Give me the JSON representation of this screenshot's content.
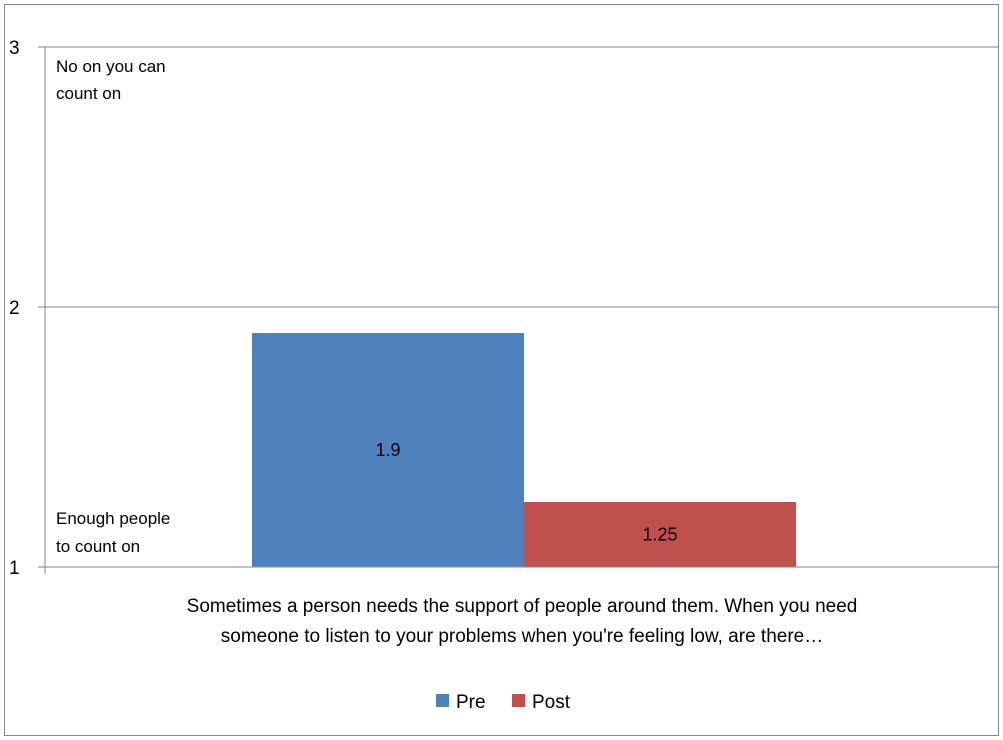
{
  "chart_data": {
    "type": "bar",
    "categories": [
      "Sometimes a person needs the support of people around them. When you need someone to listen to your problems when you're feeling low, are there…"
    ],
    "category_label_lines": [
      "Sometimes a person needs the support of people around them. When you need",
      "someone to listen to your problems when you're feeling low, are there…"
    ],
    "series": [
      {
        "name": "Pre",
        "values": [
          1.9
        ],
        "color": "#4F81BD"
      },
      {
        "name": "Post",
        "values": [
          1.25
        ],
        "color": "#C0504D"
      }
    ],
    "data_labels": [
      "1.9",
      "1.25"
    ],
    "ylim": [
      1,
      3
    ],
    "y_ticks": [
      "1",
      "2",
      "3"
    ],
    "grid": true,
    "legend_position": "bottom",
    "annotations": {
      "top": [
        "No on you can",
        "count on"
      ],
      "bottom": [
        "Enough people",
        "to count on"
      ]
    }
  }
}
